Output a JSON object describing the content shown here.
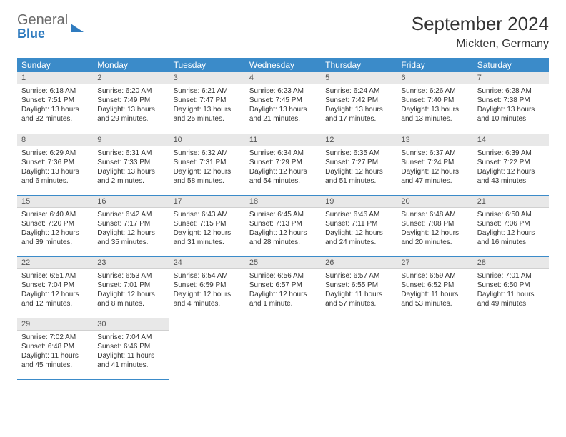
{
  "logo": {
    "word1": "General",
    "word2": "Blue"
  },
  "title": "September 2024",
  "location": "Mickten, Germany",
  "colors": {
    "header_bg": "#3b8bc9",
    "header_text": "#ffffff",
    "daynum_bg": "#e8e8e8",
    "daynum_text": "#555555",
    "border": "#3b8bc9",
    "logo_gray": "#6a6a6a",
    "logo_blue": "#2f7bbf"
  },
  "weekdays": [
    "Sunday",
    "Monday",
    "Tuesday",
    "Wednesday",
    "Thursday",
    "Friday",
    "Saturday"
  ],
  "weeks": [
    [
      {
        "day": "1",
        "sunrise": "Sunrise: 6:18 AM",
        "sunset": "Sunset: 7:51 PM",
        "daylight": "Daylight: 13 hours and 32 minutes."
      },
      {
        "day": "2",
        "sunrise": "Sunrise: 6:20 AM",
        "sunset": "Sunset: 7:49 PM",
        "daylight": "Daylight: 13 hours and 29 minutes."
      },
      {
        "day": "3",
        "sunrise": "Sunrise: 6:21 AM",
        "sunset": "Sunset: 7:47 PM",
        "daylight": "Daylight: 13 hours and 25 minutes."
      },
      {
        "day": "4",
        "sunrise": "Sunrise: 6:23 AM",
        "sunset": "Sunset: 7:45 PM",
        "daylight": "Daylight: 13 hours and 21 minutes."
      },
      {
        "day": "5",
        "sunrise": "Sunrise: 6:24 AM",
        "sunset": "Sunset: 7:42 PM",
        "daylight": "Daylight: 13 hours and 17 minutes."
      },
      {
        "day": "6",
        "sunrise": "Sunrise: 6:26 AM",
        "sunset": "Sunset: 7:40 PM",
        "daylight": "Daylight: 13 hours and 13 minutes."
      },
      {
        "day": "7",
        "sunrise": "Sunrise: 6:28 AM",
        "sunset": "Sunset: 7:38 PM",
        "daylight": "Daylight: 13 hours and 10 minutes."
      }
    ],
    [
      {
        "day": "8",
        "sunrise": "Sunrise: 6:29 AM",
        "sunset": "Sunset: 7:36 PM",
        "daylight": "Daylight: 13 hours and 6 minutes."
      },
      {
        "day": "9",
        "sunrise": "Sunrise: 6:31 AM",
        "sunset": "Sunset: 7:33 PM",
        "daylight": "Daylight: 13 hours and 2 minutes."
      },
      {
        "day": "10",
        "sunrise": "Sunrise: 6:32 AM",
        "sunset": "Sunset: 7:31 PM",
        "daylight": "Daylight: 12 hours and 58 minutes."
      },
      {
        "day": "11",
        "sunrise": "Sunrise: 6:34 AM",
        "sunset": "Sunset: 7:29 PM",
        "daylight": "Daylight: 12 hours and 54 minutes."
      },
      {
        "day": "12",
        "sunrise": "Sunrise: 6:35 AM",
        "sunset": "Sunset: 7:27 PM",
        "daylight": "Daylight: 12 hours and 51 minutes."
      },
      {
        "day": "13",
        "sunrise": "Sunrise: 6:37 AM",
        "sunset": "Sunset: 7:24 PM",
        "daylight": "Daylight: 12 hours and 47 minutes."
      },
      {
        "day": "14",
        "sunrise": "Sunrise: 6:39 AM",
        "sunset": "Sunset: 7:22 PM",
        "daylight": "Daylight: 12 hours and 43 minutes."
      }
    ],
    [
      {
        "day": "15",
        "sunrise": "Sunrise: 6:40 AM",
        "sunset": "Sunset: 7:20 PM",
        "daylight": "Daylight: 12 hours and 39 minutes."
      },
      {
        "day": "16",
        "sunrise": "Sunrise: 6:42 AM",
        "sunset": "Sunset: 7:17 PM",
        "daylight": "Daylight: 12 hours and 35 minutes."
      },
      {
        "day": "17",
        "sunrise": "Sunrise: 6:43 AM",
        "sunset": "Sunset: 7:15 PM",
        "daylight": "Daylight: 12 hours and 31 minutes."
      },
      {
        "day": "18",
        "sunrise": "Sunrise: 6:45 AM",
        "sunset": "Sunset: 7:13 PM",
        "daylight": "Daylight: 12 hours and 28 minutes."
      },
      {
        "day": "19",
        "sunrise": "Sunrise: 6:46 AM",
        "sunset": "Sunset: 7:11 PM",
        "daylight": "Daylight: 12 hours and 24 minutes."
      },
      {
        "day": "20",
        "sunrise": "Sunrise: 6:48 AM",
        "sunset": "Sunset: 7:08 PM",
        "daylight": "Daylight: 12 hours and 20 minutes."
      },
      {
        "day": "21",
        "sunrise": "Sunrise: 6:50 AM",
        "sunset": "Sunset: 7:06 PM",
        "daylight": "Daylight: 12 hours and 16 minutes."
      }
    ],
    [
      {
        "day": "22",
        "sunrise": "Sunrise: 6:51 AM",
        "sunset": "Sunset: 7:04 PM",
        "daylight": "Daylight: 12 hours and 12 minutes."
      },
      {
        "day": "23",
        "sunrise": "Sunrise: 6:53 AM",
        "sunset": "Sunset: 7:01 PM",
        "daylight": "Daylight: 12 hours and 8 minutes."
      },
      {
        "day": "24",
        "sunrise": "Sunrise: 6:54 AM",
        "sunset": "Sunset: 6:59 PM",
        "daylight": "Daylight: 12 hours and 4 minutes."
      },
      {
        "day": "25",
        "sunrise": "Sunrise: 6:56 AM",
        "sunset": "Sunset: 6:57 PM",
        "daylight": "Daylight: 12 hours and 1 minute."
      },
      {
        "day": "26",
        "sunrise": "Sunrise: 6:57 AM",
        "sunset": "Sunset: 6:55 PM",
        "daylight": "Daylight: 11 hours and 57 minutes."
      },
      {
        "day": "27",
        "sunrise": "Sunrise: 6:59 AM",
        "sunset": "Sunset: 6:52 PM",
        "daylight": "Daylight: 11 hours and 53 minutes."
      },
      {
        "day": "28",
        "sunrise": "Sunrise: 7:01 AM",
        "sunset": "Sunset: 6:50 PM",
        "daylight": "Daylight: 11 hours and 49 minutes."
      }
    ],
    [
      {
        "day": "29",
        "sunrise": "Sunrise: 7:02 AM",
        "sunset": "Sunset: 6:48 PM",
        "daylight": "Daylight: 11 hours and 45 minutes."
      },
      {
        "day": "30",
        "sunrise": "Sunrise: 7:04 AM",
        "sunset": "Sunset: 6:46 PM",
        "daylight": "Daylight: 11 hours and 41 minutes."
      },
      null,
      null,
      null,
      null,
      null
    ]
  ]
}
